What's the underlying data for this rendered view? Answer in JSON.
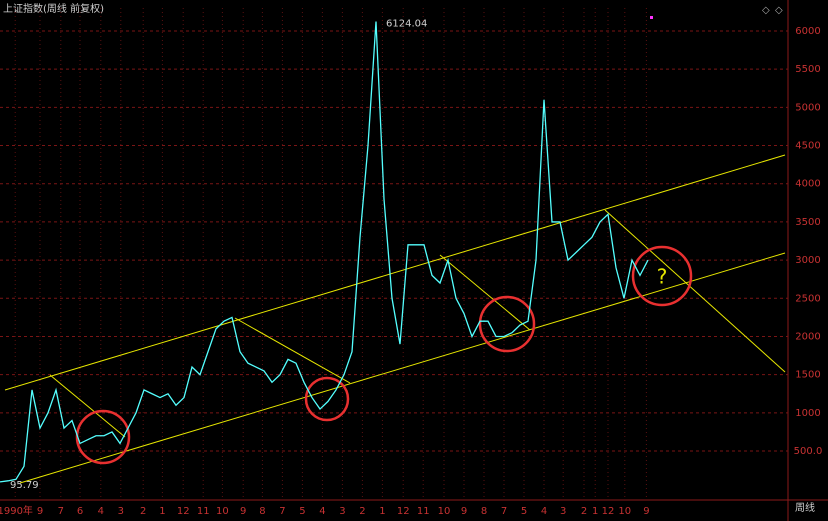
{
  "chart_data": {
    "type": "line",
    "title": "上证指数(周线 前复权)",
    "period_label": "周线",
    "max_label": "6124.04",
    "min_label": "95.79",
    "question_mark": "?",
    "x": [
      0,
      1,
      2,
      3,
      4,
      5,
      6,
      7,
      8,
      9,
      10,
      11,
      12,
      13,
      14,
      15,
      16,
      17,
      18,
      19,
      20,
      21,
      22,
      23,
      24,
      25,
      26,
      27,
      28,
      29,
      30,
      31,
      32,
      33,
      34,
      35,
      36,
      37,
      38,
      39,
      40,
      41,
      42,
      43,
      44,
      45,
      46,
      47,
      48,
      49,
      50,
      51,
      52,
      53,
      54,
      55,
      56,
      57,
      58,
      59,
      60,
      61,
      62,
      63,
      64,
      65,
      66,
      67,
      68,
      69,
      70,
      71,
      72,
      73,
      74,
      75,
      76,
      77,
      78,
      79,
      80,
      81
    ],
    "series": [
      {
        "name": "上证指数",
        "color": "#54ffff",
        "values": [
          95.79,
          110,
          130,
          300,
          1300,
          800,
          1000,
          1300,
          800,
          900,
          600,
          650,
          700,
          700,
          750,
          600,
          800,
          1000,
          1300,
          1250,
          1200,
          1250,
          1100,
          1200,
          1600,
          1500,
          1800,
          2100,
          2200,
          2250,
          1800,
          1650,
          1600,
          1550,
          1400,
          1500,
          1700,
          1650,
          1400,
          1200,
          1050,
          1150,
          1300,
          1500,
          1800,
          3300,
          4500,
          6124.04,
          3800,
          2500,
          1900,
          3200,
          3200,
          3200,
          2800,
          2700,
          3000,
          2500,
          2300,
          2000,
          2200,
          2200,
          2000,
          2000,
          2050,
          2150,
          2200,
          3000,
          5100,
          3500,
          3500,
          3000,
          3100,
          3200,
          3300,
          3500,
          3600,
          2900,
          2500,
          3000,
          2800,
          3000
        ]
      }
    ],
    "xlim": [
      0,
      98.5
    ],
    "xticks": [
      {
        "value": 1.9,
        "label": "1990年"
      },
      {
        "value": 5,
        "label": "9"
      },
      {
        "value": 7.6,
        "label": "7"
      },
      {
        "value": 10,
        "label": "6"
      },
      {
        "value": 12.6,
        "label": "4"
      },
      {
        "value": 15.1,
        "label": "3"
      },
      {
        "value": 17.9,
        "label": "2"
      },
      {
        "value": 20.3,
        "label": "1"
      },
      {
        "value": 22.9,
        "label": "12"
      },
      {
        "value": 25.4,
        "label": "11"
      },
      {
        "value": 27.8,
        "label": "10"
      },
      {
        "value": 30.4,
        "label": "9"
      },
      {
        "value": 32.8,
        "label": "8"
      },
      {
        "value": 35.3,
        "label": "7"
      },
      {
        "value": 37.8,
        "label": "5"
      },
      {
        "value": 40.3,
        "label": "4"
      },
      {
        "value": 42.8,
        "label": "3"
      },
      {
        "value": 45.3,
        "label": "2"
      },
      {
        "value": 47.8,
        "label": "1"
      },
      {
        "value": 50.4,
        "label": "12"
      },
      {
        "value": 52.9,
        "label": "11"
      },
      {
        "value": 55.5,
        "label": "10"
      },
      {
        "value": 58,
        "label": "9"
      },
      {
        "value": 60.5,
        "label": "8"
      },
      {
        "value": 63,
        "label": "7"
      },
      {
        "value": 65.5,
        "label": "5"
      },
      {
        "value": 68,
        "label": "4"
      },
      {
        "value": 70.4,
        "label": "3"
      },
      {
        "value": 73,
        "label": "2"
      },
      {
        "value": 74.4,
        "label": "1"
      },
      {
        "value": 76,
        "label": "12"
      },
      {
        "value": 78.1,
        "label": "10"
      },
      {
        "value": 80.8,
        "label": "9"
      }
    ],
    "ylim": [
      -141,
      6301
    ],
    "yticks": [
      {
        "value": 500,
        "label": "500.0"
      },
      1000,
      1500,
      2000,
      2500,
      3000,
      3500,
      4000,
      4500,
      5000,
      5500,
      6000
    ],
    "grid": true
  }
}
